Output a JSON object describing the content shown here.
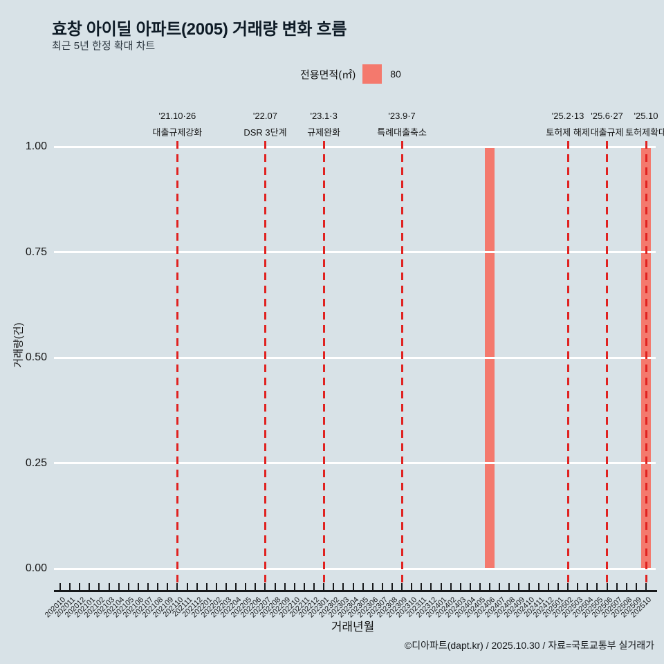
{
  "title": "효창 아이딜 아파트(2005) 거래량 변화 흐름",
  "subtitle": "최근 5년 한정 확대 차트",
  "legend": {
    "label": "전용면적(㎡)",
    "value": "80"
  },
  "y_axis": {
    "title": "거래량(건)",
    "ticks": [
      "0.00",
      "0.25",
      "0.50",
      "0.75",
      "1.00"
    ]
  },
  "x_axis": {
    "title": "거래년월"
  },
  "footer": "©디아파트(dapt.kr) / 2025.10.30 / 자료=국토교통부 실거래가",
  "colors": {
    "background": "#d8e2e7",
    "bar": "#f4796d",
    "event_line": "#e02220",
    "grid": "#ffffff",
    "axis": "#16181a"
  },
  "annotations": [
    {
      "date": "'21.10·26",
      "label": "대출규제강화",
      "month": "202110"
    },
    {
      "date": "'22.07",
      "label": "DSR 3단계",
      "month": "202207"
    },
    {
      "date": "'23.1·3",
      "label": "규제완화",
      "month": "202301"
    },
    {
      "date": "'23.9·7",
      "label": "특례대출축소",
      "month": "202309"
    },
    {
      "date": "'25.2·13",
      "label": "토허제 해제",
      "month": "202502"
    },
    {
      "date": "'25.6·27",
      "label": "대출규제",
      "month": "202506"
    },
    {
      "date": "'25.10",
      "label": "토허제확대",
      "month": "202510"
    }
  ],
  "chart_data": {
    "type": "bar",
    "title": "효창 아이딜 아파트(2005) 거래량 변화 흐름",
    "xlabel": "거래년월",
    "ylabel": "거래량(건)",
    "ylim": [
      0,
      1
    ],
    "yticks": [
      0,
      0.25,
      0.5,
      0.75,
      1.0
    ],
    "grid": true,
    "legend_position": "top",
    "x": [
      "202010",
      "202011",
      "202012",
      "202101",
      "202102",
      "202103",
      "202104",
      "202105",
      "202106",
      "202107",
      "202108",
      "202109",
      "202110",
      "202111",
      "202112",
      "202201",
      "202202",
      "202203",
      "202204",
      "202205",
      "202206",
      "202207",
      "202208",
      "202209",
      "202210",
      "202211",
      "202212",
      "202301",
      "202302",
      "202303",
      "202304",
      "202305",
      "202306",
      "202307",
      "202308",
      "202309",
      "202310",
      "202311",
      "202312",
      "202401",
      "202402",
      "202403",
      "202404",
      "202405",
      "202406",
      "202407",
      "202408",
      "202409",
      "202410",
      "202411",
      "202412",
      "202501",
      "202502",
      "202503",
      "202504",
      "202505",
      "202506",
      "202507",
      "202508",
      "202509",
      "202510"
    ],
    "series": [
      {
        "name": "80",
        "values": [
          0,
          0,
          0,
          0,
          0,
          0,
          0,
          0,
          0,
          0,
          0,
          0,
          0,
          0,
          0,
          0,
          0,
          0,
          0,
          0,
          0,
          0,
          0,
          0,
          0,
          0,
          0,
          0,
          0,
          0,
          0,
          0,
          0,
          0,
          0,
          0,
          0,
          0,
          0,
          0,
          0,
          0,
          0,
          0,
          1,
          0,
          0,
          0,
          0,
          0,
          0,
          0,
          0,
          0,
          0,
          0,
          0,
          0,
          0,
          0,
          1
        ]
      }
    ]
  }
}
